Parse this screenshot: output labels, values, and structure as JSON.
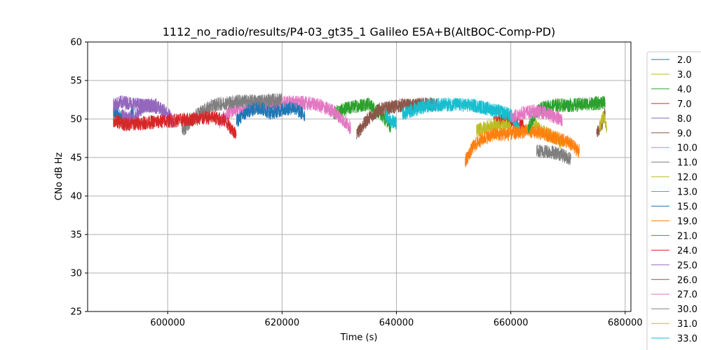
{
  "chart_data": {
    "type": "line",
    "title": "1112_no_radio/results/P4-03_gt35_1 Galileo E5A+B(AltBOC-Comp-PD)",
    "xlabel": "Time (s)",
    "ylabel": "CNo dB Hz",
    "xlim": [
      586000,
      681000
    ],
    "ylim": [
      25,
      60
    ],
    "xticks": [
      600000,
      620000,
      640000,
      660000,
      680000
    ],
    "xtick_labels": [
      "600000",
      "620000",
      "640000",
      "660000",
      "680000"
    ],
    "yticks": [
      25,
      30,
      35,
      40,
      45,
      50,
      55,
      60
    ],
    "ytick_labels": [
      "25",
      "30",
      "35",
      "40",
      "45",
      "50",
      "55",
      "60"
    ],
    "grid": true,
    "legend_position": "right, outside plot area",
    "series": [
      {
        "name": "2.0",
        "color": "#1f77b4",
        "points": [
          [
            590500,
            50.8
          ],
          [
            592000,
            50.3
          ],
          [
            593000,
            49.2
          ],
          [
            594000,
            51.3
          ]
        ]
      },
      {
        "name": "3.0",
        "color": "#bcbd22",
        "points": [
          [
            664000,
            49.2
          ],
          [
            666000,
            48.2
          ],
          [
            668000,
            47.5
          ],
          [
            669000,
            46.8
          ]
        ]
      },
      {
        "name": "4.0",
        "color": "#2ca02c",
        "points": [
          [
            629000,
            50.8
          ],
          [
            632000,
            51.5
          ],
          [
            635000,
            52.0
          ],
          [
            637500,
            50.5
          ],
          [
            639000,
            49.0
          ]
        ]
      },
      {
        "name": "7.0",
        "color": "#d62728",
        "points": [
          [
            657000,
            49.6
          ],
          [
            659000,
            49.9
          ],
          [
            661000,
            49.5
          ],
          [
            662500,
            48.8
          ]
        ]
      },
      {
        "name": "8.0",
        "color": "#9467bd",
        "points": [
          [
            592000,
            50.4
          ],
          [
            594000,
            50.0
          ],
          [
            596000,
            51.8
          ],
          [
            598000,
            51.6
          ],
          [
            600000,
            50.8
          ],
          [
            601000,
            49.5
          ]
        ]
      },
      {
        "name": "9.0",
        "color": "#8c564b",
        "points": [
          [
            633000,
            48.0
          ],
          [
            635000,
            50.0
          ],
          [
            637000,
            51.2
          ],
          [
            639000,
            51.5
          ],
          [
            641000,
            51.8
          ],
          [
            643000,
            51.7
          ],
          [
            645000,
            52.0
          ],
          [
            647000,
            51.8
          ]
        ]
      },
      {
        "name": "10.0",
        "color": "#e377c2",
        "points": [
          [
            609000,
            49.6
          ],
          [
            611000,
            51.0
          ],
          [
            614000,
            51.5
          ],
          [
            618000,
            52.0
          ],
          [
            622000,
            52.2
          ],
          [
            626000,
            51.9
          ],
          [
            629000,
            51.0
          ],
          [
            632000,
            48.9
          ]
        ]
      },
      {
        "name": "11.0",
        "color": "#7f7f7f",
        "points": [
          [
            602500,
            48.4
          ],
          [
            605000,
            50.5
          ],
          [
            608000,
            51.8
          ],
          [
            612000,
            52.3
          ],
          [
            616000,
            52.3
          ],
          [
            620000,
            52.5
          ]
        ]
      },
      {
        "name": "12.0",
        "color": "#bcbd22",
        "points": [
          [
            654000,
            48.5
          ],
          [
            656000,
            49.0
          ],
          [
            658000,
            49.2
          ],
          [
            660000,
            49.0
          ]
        ]
      },
      {
        "name": "13.0",
        "color": "#17becf",
        "points": [
          [
            641000,
            50.6
          ],
          [
            643000,
            51.2
          ],
          [
            646000,
            51.8
          ],
          [
            650000,
            51.9
          ],
          [
            654000,
            51.7
          ],
          [
            658000,
            51.0
          ],
          [
            660000,
            50.5
          ],
          [
            661500,
            48.6
          ]
        ]
      },
      {
        "name": "15.0",
        "color": "#1f77b4",
        "points": [
          [
            612000,
            49.7
          ],
          [
            614000,
            51.0
          ],
          [
            616000,
            51.5
          ],
          [
            618000,
            50.8
          ],
          [
            620000,
            51.2
          ],
          [
            622000,
            51.5
          ],
          [
            624000,
            50.5
          ]
        ]
      },
      {
        "name": "19.0",
        "color": "#ff7f0e",
        "points": [
          [
            652000,
            44.5
          ],
          [
            653500,
            46.5
          ],
          [
            655000,
            47.4
          ],
          [
            657000,
            48.0
          ],
          [
            659000,
            48.0
          ],
          [
            661000,
            48.2
          ],
          [
            663000,
            48.5
          ],
          [
            665000,
            48.2
          ],
          [
            667000,
            47.8
          ],
          [
            670000,
            47.0
          ],
          [
            672000,
            45.8
          ]
        ]
      },
      {
        "name": "21.0",
        "color": "#2ca02c",
        "points": [
          [
            663000,
            48.6
          ],
          [
            664500,
            51.0
          ],
          [
            666000,
            51.5
          ],
          [
            668000,
            51.8
          ],
          [
            671000,
            51.8
          ],
          [
            674000,
            52.0
          ],
          [
            676500,
            52.1
          ]
        ]
      },
      {
        "name": "24.0",
        "color": "#d62728",
        "points": [
          [
            590500,
            49.8
          ],
          [
            591500,
            49.6
          ],
          [
            592500,
            49.3
          ],
          [
            608000,
            50.2
          ],
          [
            610000,
            49.8
          ],
          [
            612000,
            48.0
          ]
        ]
      },
      {
        "name": "25.0",
        "color": "#9467bd",
        "points": [
          [
            590500,
            51.8
          ],
          [
            592000,
            52.2
          ],
          [
            594000,
            52.0
          ],
          [
            596000,
            51.7
          ],
          [
            598000,
            51.8
          ]
        ]
      },
      {
        "name": "26.0",
        "color": "#8c564b",
        "points": [
          [
            675000,
            48.0
          ],
          [
            676000,
            49.5
          ],
          [
            676500,
            51.0
          ]
        ]
      },
      {
        "name": "27.0",
        "color": "#e377c2",
        "points": [
          [
            660000,
            50.2
          ],
          [
            662000,
            50.8
          ],
          [
            664000,
            51.0
          ],
          [
            666000,
            50.8
          ],
          [
            668000,
            50.2
          ],
          [
            669000,
            49.8
          ]
        ]
      },
      {
        "name": "30.0",
        "color": "#7f7f7f",
        "points": [
          [
            664500,
            45.8
          ],
          [
            666500,
            45.8
          ],
          [
            668500,
            45.5
          ],
          [
            670500,
            44.8
          ]
        ]
      },
      {
        "name": "31.0",
        "color": "#bcbd22",
        "points": [
          [
            675500,
            49.0
          ],
          [
            676200,
            50.5
          ],
          [
            676800,
            48.8
          ]
        ]
      },
      {
        "name": "33.0",
        "color": "#17becf",
        "points": [
          [
            638000,
            50.5
          ],
          [
            639000,
            49.8
          ],
          [
            640000,
            49.5
          ]
        ]
      }
    ]
  }
}
